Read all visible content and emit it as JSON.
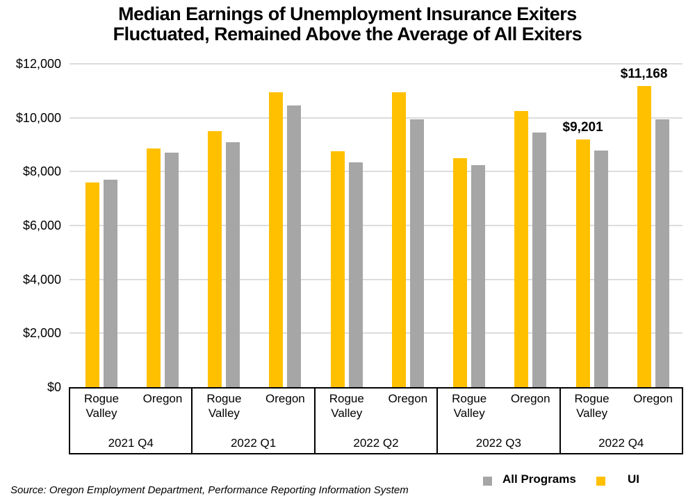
{
  "title": {
    "line1": "Median Earnings of Unemployment Insurance Exiters",
    "line2": "Fluctuated, Remained Above the Average of All Exiters"
  },
  "source": "Source: Oregon Employment Department, Performance Reporting Information System",
  "legend": {
    "items": [
      {
        "label": "All Programs",
        "color": "#A6A6A6"
      },
      {
        "label": "UI",
        "color": "#FFC000"
      }
    ]
  },
  "chart_data": {
    "type": "bar",
    "title": "Median Earnings of Unemployment Insurance Exiters Fluctuated, Remained Above the Average of All Exiters",
    "ylim": [
      0,
      12000
    ],
    "ytick_step": 2000,
    "ytick_labels": [
      "$0",
      "$2,000",
      "$4,000",
      "$6,000",
      "$8,000",
      "$10,000",
      "$12,000"
    ],
    "gridline_color": "#dcdcdc",
    "grid": true,
    "legend_position": "bottom-right",
    "series": [
      {
        "name": "UI",
        "color": "#FFC000"
      },
      {
        "name": "All Programs",
        "color": "#A6A6A6"
      }
    ],
    "quarters": [
      {
        "label": "2021 Q4",
        "groups": [
          {
            "location": "Rogue Valley",
            "ui": 7600,
            "all_programs": 7700
          },
          {
            "location": "Oregon",
            "ui": 8850,
            "all_programs": 8700
          }
        ]
      },
      {
        "label": "2022 Q1",
        "groups": [
          {
            "location": "Rogue Valley",
            "ui": 9500,
            "all_programs": 9100
          },
          {
            "location": "Oregon",
            "ui": 10950,
            "all_programs": 10450
          }
        ]
      },
      {
        "label": "2022 Q2",
        "groups": [
          {
            "location": "Rogue Valley",
            "ui": 8750,
            "all_programs": 8350
          },
          {
            "location": "Oregon",
            "ui": 10950,
            "all_programs": 9950
          }
        ]
      },
      {
        "label": "2022 Q3",
        "groups": [
          {
            "location": "Rogue Valley",
            "ui": 8500,
            "all_programs": 8250
          },
          {
            "location": "Oregon",
            "ui": 10250,
            "all_programs": 9450
          }
        ]
      },
      {
        "label": "2022 Q4",
        "groups": [
          {
            "location": "Rogue Valley",
            "ui": 9201,
            "all_programs": 8780,
            "ui_data_label": "$9,201"
          },
          {
            "location": "Oregon",
            "ui": 11168,
            "all_programs": 9940,
            "ui_data_label": "$11,168"
          }
        ]
      }
    ]
  }
}
